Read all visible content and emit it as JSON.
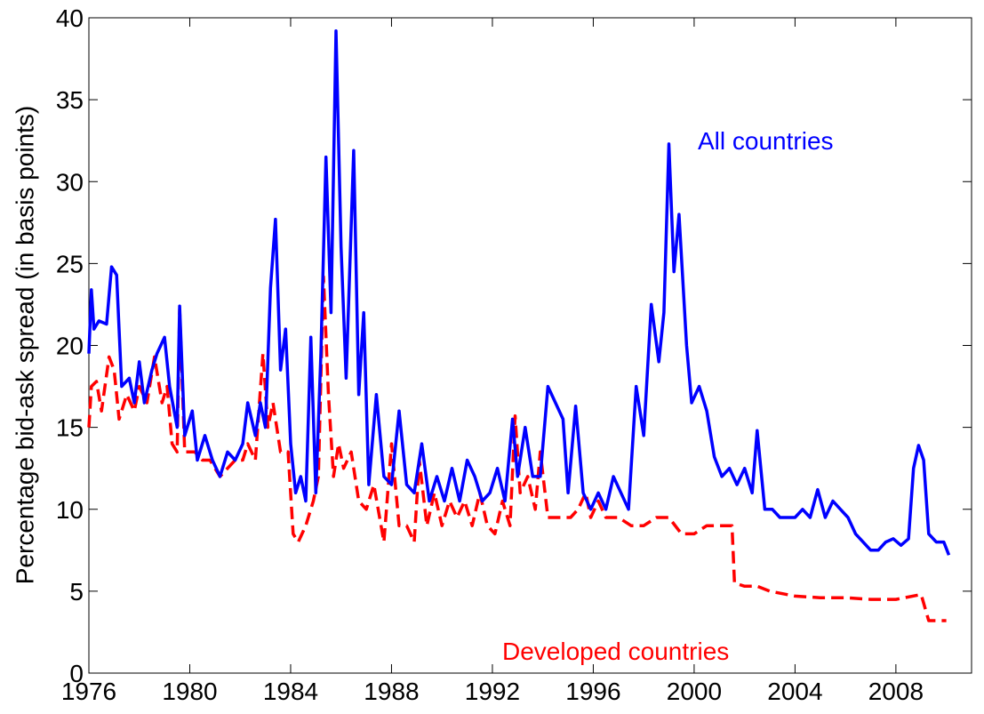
{
  "chart_data": {
    "type": "line",
    "ylabel": "Percentage bid-ask spread (in basis points)",
    "annotations": [
      "All countries",
      "Developed countries"
    ],
    "xlim": [
      1976,
      2011
    ],
    "ylim": [
      0,
      40
    ],
    "xticks": [
      1976,
      1980,
      1984,
      1988,
      1992,
      1996,
      2000,
      2004,
      2008
    ],
    "yticks": [
      0,
      5,
      10,
      15,
      20,
      25,
      30,
      35,
      40
    ],
    "grid": false,
    "series": [
      {
        "name": "All countries",
        "color": "#0000ff",
        "dash": "solid",
        "x": [
          1976.0,
          1976.1,
          1976.2,
          1976.4,
          1976.7,
          1976.9,
          1977.1,
          1977.3,
          1977.6,
          1977.8,
          1978.0,
          1978.2,
          1978.5,
          1978.7,
          1979.0,
          1979.2,
          1979.5,
          1979.6,
          1979.8,
          1980.1,
          1980.3,
          1980.6,
          1980.9,
          1981.2,
          1981.5,
          1981.8,
          1982.1,
          1982.3,
          1982.6,
          1982.8,
          1983.0,
          1983.2,
          1983.4,
          1983.6,
          1983.8,
          1984.0,
          1984.2,
          1984.4,
          1984.6,
          1984.8,
          1985.0,
          1985.2,
          1985.4,
          1985.6,
          1985.8,
          1986.0,
          1986.2,
          1986.5,
          1986.7,
          1986.9,
          1987.1,
          1987.4,
          1987.7,
          1988.0,
          1988.3,
          1988.6,
          1988.9,
          1989.2,
          1989.5,
          1989.8,
          1990.1,
          1990.4,
          1990.7,
          1991.0,
          1991.3,
          1991.6,
          1991.9,
          1992.2,
          1992.5,
          1992.8,
          1993.0,
          1993.3,
          1993.6,
          1993.9,
          1994.2,
          1994.5,
          1994.8,
          1995.0,
          1995.3,
          1995.6,
          1995.9,
          1996.2,
          1996.5,
          1996.8,
          1997.1,
          1997.4,
          1997.7,
          1998.0,
          1998.3,
          1998.6,
          1998.8,
          1999.0,
          1999.2,
          1999.4,
          1999.7,
          1999.9,
          2000.2,
          2000.5,
          2000.8,
          2001.1,
          2001.4,
          2001.7,
          2002.0,
          2002.3,
          2002.5,
          2002.8,
          2003.1,
          2003.4,
          2003.7,
          2004.0,
          2004.3,
          2004.6,
          2004.9,
          2005.2,
          2005.5,
          2005.8,
          2006.1,
          2006.4,
          2006.7,
          2007.0,
          2007.3,
          2007.6,
          2007.9,
          2008.2,
          2008.5,
          2008.7,
          2008.9,
          2009.1,
          2009.3,
          2009.6,
          2009.9,
          2010.1
        ],
        "values": [
          19.5,
          23.4,
          21,
          21.5,
          21.3,
          24.8,
          24.3,
          17.5,
          18,
          16.5,
          19,
          16.5,
          18.5,
          19.5,
          20.5,
          17.5,
          15,
          22.4,
          14.5,
          16,
          13,
          14.5,
          13,
          12,
          13.5,
          13,
          14,
          16.5,
          14.5,
          16.5,
          15,
          23.5,
          27.7,
          18.5,
          21,
          14,
          11,
          12,
          10.5,
          20.5,
          11,
          19.5,
          31.5,
          22,
          39.2,
          26,
          18,
          31.9,
          17,
          22,
          11.5,
          17,
          12,
          11.5,
          16,
          11.5,
          11,
          14,
          10.5,
          12,
          10.5,
          12.5,
          10.5,
          13,
          12,
          10.5,
          11,
          12.5,
          10.5,
          15.5,
          12,
          15,
          12,
          12,
          17.5,
          16.5,
          15.5,
          11,
          16.3,
          11,
          10,
          11,
          10,
          12,
          11,
          10,
          17.5,
          14.5,
          22.5,
          19,
          22,
          32.3,
          24.5,
          28,
          20,
          16.5,
          17.5,
          16,
          13.2,
          12,
          12.5,
          11.5,
          12.5,
          11,
          14.8,
          10,
          10,
          9.5,
          9.5,
          9.5,
          10,
          9.5,
          11.2,
          9.5,
          10.5,
          10,
          9.5,
          8.5,
          8,
          7.5,
          7.5,
          8,
          8.2,
          7.8,
          8.2,
          12.5,
          13.9,
          13,
          8.5,
          8,
          8,
          7.2
        ]
      },
      {
        "name": "Developed countries",
        "color": "#ff0000",
        "dash": "dashed",
        "x": [
          1976.0,
          1976.1,
          1976.3,
          1976.5,
          1976.8,
          1977.0,
          1977.2,
          1977.5,
          1977.8,
          1978.0,
          1978.3,
          1978.6,
          1978.9,
          1979.1,
          1979.3,
          1979.5,
          1979.6,
          1979.8,
          1980.2,
          1980.5,
          1980.8,
          1981.2,
          1981.5,
          1981.8,
          1982.1,
          1982.3,
          1982.6,
          1982.9,
          1983.1,
          1983.3,
          1983.6,
          1983.9,
          1984.1,
          1984.3,
          1984.6,
          1984.9,
          1985.1,
          1985.3,
          1985.5,
          1985.7,
          1985.9,
          1986.1,
          1986.4,
          1986.7,
          1987.0,
          1987.3,
          1987.7,
          1988.0,
          1988.3,
          1988.6,
          1988.9,
          1989.1,
          1989.4,
          1989.7,
          1990.0,
          1990.3,
          1990.6,
          1990.9,
          1991.2,
          1991.5,
          1991.8,
          1992.1,
          1992.4,
          1992.7,
          1992.9,
          1993.1,
          1993.4,
          1993.7,
          1993.9,
          1994.2,
          1994.5,
          1994.8,
          1995.1,
          1995.4,
          1995.7,
          1995.9,
          1996.2,
          1996.5,
          1997.0,
          1997.5,
          1998.0,
          1998.5,
          1999.0,
          1999.5,
          2000.0,
          2000.5,
          2001.0,
          2001.5,
          2001.6,
          2002.0,
          2002.5,
          2003.0,
          2004.0,
          2005.0,
          2006.0,
          2007.0,
          2008.0,
          2009.0,
          2009.3,
          2010.0
        ],
        "values": [
          15,
          17.5,
          17.8,
          16,
          19.3,
          18.5,
          15.5,
          17,
          16,
          17.5,
          16.5,
          19.3,
          16.5,
          17.5,
          14,
          13.5,
          22.2,
          13.5,
          13.5,
          13,
          13,
          12,
          12.5,
          13,
          13,
          14,
          13,
          19.5,
          15,
          16.5,
          13.5,
          13.5,
          8.5,
          8,
          9,
          10.5,
          12,
          24.2,
          17,
          12,
          14,
          12.5,
          13.5,
          10.5,
          10,
          11.5,
          8,
          14,
          9,
          9,
          8,
          13,
          9,
          11,
          9,
          10.5,
          9.5,
          10.5,
          9,
          11,
          9,
          8.5,
          10.5,
          9,
          15.7,
          11,
          12,
          10,
          13.5,
          9.5,
          9.5,
          9.5,
          9.5,
          10,
          11,
          9.5,
          10.5,
          9.5,
          9.5,
          9,
          9,
          9.5,
          9.5,
          8.5,
          8.5,
          9,
          9,
          9,
          5.5,
          5.3,
          5.3,
          5,
          4.7,
          4.6,
          4.6,
          4.5,
          4.5,
          4.8,
          3.2,
          3.2
        ]
      }
    ]
  }
}
